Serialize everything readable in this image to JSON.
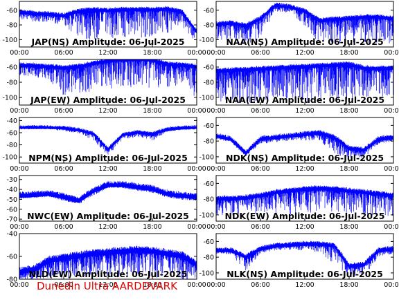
{
  "footer_text": "Dunedin Ultra AARDDVARK",
  "colors": {
    "trace": "#0000ff",
    "frame": "#000000",
    "background": "#ffffff",
    "footer": "#e00000"
  },
  "chart_data": [
    {
      "type": "line",
      "title": "JAP(NS) Amplitude: 06-Jul-2025",
      "x_ticks": [
        "00:00",
        "06:00",
        "12:00",
        "18:00",
        "00:00"
      ],
      "y_ticks": [
        -60,
        -80,
        -100
      ],
      "ylim": [
        -110,
        -48
      ],
      "x": [
        "00:00",
        "02:00",
        "04:00",
        "06:00",
        "08:00",
        "10:00",
        "12:00",
        "14:00",
        "16:00",
        "18:00",
        "20:00",
        "22:00",
        "24:00"
      ],
      "values": [
        -63,
        -65,
        -66,
        -68,
        -62,
        -60,
        -61,
        -60,
        -60,
        -60,
        -59,
        -63,
        -90
      ],
      "noise_floor": [
        -72,
        -74,
        -76,
        -78,
        -100,
        -100,
        -98,
        -97,
        -98,
        -97,
        -90,
        -80,
        -104
      ],
      "series": [
        {
          "values": [
            -63,
            -65,
            -66,
            -68,
            -62,
            -60,
            -61,
            -60,
            -60,
            -60,
            -59,
            -63,
            -90
          ]
        }
      ]
    },
    {
      "type": "line",
      "title": "NAA(NS) Amplitude: 06-Jul-2025",
      "x_ticks": [
        "00:00",
        "06:00",
        "12:00",
        "18:00",
        "00:00"
      ],
      "y_ticks": [
        -60,
        -80,
        -100
      ],
      "ylim": [
        -110,
        -48
      ],
      "x": [
        "00:00",
        "02:00",
        "04:00",
        "06:00",
        "08:00",
        "10:00",
        "12:00",
        "14:00",
        "16:00",
        "18:00",
        "20:00",
        "22:00",
        "24:00"
      ],
      "values": [
        -80,
        -78,
        -82,
        -72,
        -54,
        -56,
        -62,
        -75,
        -73,
        -72,
        -70,
        -70,
        -72
      ],
      "noise_floor": [
        -100,
        -100,
        -108,
        -95,
        -60,
        -62,
        -80,
        -105,
        -104,
        -102,
        -103,
        -104,
        -104
      ],
      "series": [
        {
          "values": [
            -80,
            -78,
            -82,
            -72,
            -54,
            -56,
            -62,
            -75,
            -73,
            -72,
            -70,
            -70,
            -72
          ]
        }
      ]
    },
    {
      "type": "line",
      "title": "JAP(EW) Amplitude: 06-Jul-2025",
      "x_ticks": [
        "00:00",
        "06:00",
        "12:00",
        "18:00",
        "00:00"
      ],
      "y_ticks": [
        -60,
        -80,
        -100
      ],
      "ylim": [
        -110,
        -50
      ],
      "x": [
        "00:00",
        "02:00",
        "04:00",
        "06:00",
        "08:00",
        "10:00",
        "12:00",
        "14:00",
        "16:00",
        "18:00",
        "20:00",
        "22:00",
        "24:00"
      ],
      "values": [
        -58,
        -59,
        -60,
        -62,
        -60,
        -56,
        -52,
        -51,
        -50,
        -51,
        -57,
        -58,
        -60
      ],
      "noise_floor": [
        -70,
        -72,
        -75,
        -98,
        -95,
        -92,
        -88,
        -85,
        -85,
        -86,
        -92,
        -78,
        -104
      ],
      "series": [
        {
          "values": [
            -58,
            -59,
            -60,
            -62,
            -60,
            -56,
            -52,
            -51,
            -50,
            -51,
            -57,
            -58,
            -60
          ]
        }
      ]
    },
    {
      "type": "line",
      "title": "NAA(EW) Amplitude: 06-Jul-2025",
      "x_ticks": [
        "00:00",
        "06:00",
        "12:00",
        "18:00",
        "00:00"
      ],
      "y_ticks": [
        -60,
        -80,
        -100
      ],
      "ylim": [
        -110,
        -50
      ],
      "x": [
        "00:00",
        "02:00",
        "04:00",
        "06:00",
        "08:00",
        "10:00",
        "12:00",
        "14:00",
        "16:00",
        "18:00",
        "20:00",
        "22:00",
        "24:00"
      ],
      "values": [
        -66,
        -65,
        -64,
        -63,
        -62,
        -61,
        -60,
        -59,
        -58,
        -57,
        -62,
        -63,
        -62
      ],
      "noise_floor": [
        -104,
        -104,
        -105,
        -104,
        -104,
        -104,
        -104,
        -104,
        -104,
        -104,
        -100,
        -98,
        -96
      ],
      "series": [
        {
          "values": [
            -66,
            -65,
            -64,
            -63,
            -62,
            -61,
            -60,
            -59,
            -58,
            -57,
            -62,
            -63,
            -62
          ]
        }
      ]
    },
    {
      "type": "line",
      "title": "NPM(NS) Amplitude: 06-Jul-2025",
      "x_ticks": [
        "00:00",
        "06:00",
        "12:00",
        "18:00",
        "00:00"
      ],
      "y_ticks": [
        -40,
        -60,
        -80,
        -100
      ],
      "ylim": [
        -110,
        -35
      ],
      "x": [
        "00:00",
        "02:00",
        "04:00",
        "06:00",
        "08:00",
        "10:00",
        "12:00",
        "14:00",
        "16:00",
        "18:00",
        "20:00",
        "22:00",
        "24:00"
      ],
      "values": [
        -52,
        -52,
        -52,
        -53,
        -56,
        -62,
        -88,
        -64,
        -60,
        -63,
        -55,
        -53,
        -52
      ],
      "noise_floor": [
        -53,
        -53,
        -53,
        -56,
        -60,
        -72,
        -96,
        -70,
        -66,
        -72,
        -57,
        -54,
        -53
      ],
      "series": [
        {
          "values": [
            -52,
            -52,
            -52,
            -53,
            -56,
            -62,
            -88,
            -64,
            -60,
            -63,
            -55,
            -53,
            -52
          ]
        }
      ]
    },
    {
      "type": "line",
      "title": "NDK(NS) Amplitude: 06-Jul-2025",
      "x_ticks": [
        "00:00",
        "06:00",
        "12:00",
        "18:00",
        "00:00"
      ],
      "y_ticks": [
        -60,
        -80,
        -100
      ],
      "ylim": [
        -108,
        -50
      ],
      "x": [
        "00:00",
        "02:00",
        "04:00",
        "06:00",
        "08:00",
        "10:00",
        "12:00",
        "14:00",
        "16:00",
        "18:00",
        "20:00",
        "22:00",
        "24:00"
      ],
      "values": [
        -74,
        -78,
        -96,
        -78,
        -76,
        -74,
        -72,
        -70,
        -76,
        -90,
        -92,
        -78,
        -76
      ],
      "noise_floor": [
        -76,
        -80,
        -98,
        -82,
        -80,
        -78,
        -78,
        -78,
        -95,
        -100,
        -100,
        -82,
        -79
      ],
      "series": [
        {
          "values": [
            -74,
            -78,
            -96,
            -78,
            -76,
            -74,
            -72,
            -70,
            -76,
            -90,
            -92,
            -78,
            -76
          ]
        }
      ]
    },
    {
      "type": "line",
      "title": "NWC(EW) Amplitude: 06-Jul-2025",
      "x_ticks": [
        "00:00",
        "06:00",
        "12:00",
        "18:00",
        "00:00"
      ],
      "y_ticks": [
        -30,
        -40,
        -50,
        -60,
        -70
      ],
      "ylim": [
        -72,
        -26
      ],
      "x": [
        "00:00",
        "02:00",
        "04:00",
        "06:00",
        "08:00",
        "10:00",
        "12:00",
        "14:00",
        "16:00",
        "18:00",
        "20:00",
        "22:00",
        "24:00"
      ],
      "values": [
        -47,
        -46,
        -45,
        -48,
        -52,
        -42,
        -36,
        -36,
        -38,
        -40,
        -45,
        -47,
        -48
      ],
      "noise_floor": [
        -48,
        -47,
        -46,
        -50,
        -54,
        -45,
        -37,
        -37,
        -40,
        -42,
        -47,
        -49,
        -50
      ],
      "series": [
        {
          "values": [
            -47,
            -46,
            -45,
            -48,
            -52,
            -42,
            -36,
            -36,
            -38,
            -40,
            -45,
            -47,
            -48
          ]
        }
      ]
    },
    {
      "type": "line",
      "title": "NDK(EW) Amplitude: 06-Jul-2025",
      "x_ticks": [
        "00:00",
        "06:00",
        "12:00",
        "18:00",
        "00:00"
      ],
      "y_ticks": [
        -60,
        -80,
        -100
      ],
      "ylim": [
        -108,
        -50
      ],
      "x": [
        "00:00",
        "02:00",
        "04:00",
        "06:00",
        "08:00",
        "10:00",
        "12:00",
        "14:00",
        "16:00",
        "18:00",
        "20:00",
        "22:00",
        "24:00"
      ],
      "values": [
        -80,
        -80,
        -79,
        -76,
        -72,
        -70,
        -68,
        -67,
        -68,
        -70,
        -72,
        -74,
        -76
      ],
      "noise_floor": [
        -100,
        -100,
        -100,
        -98,
        -98,
        -98,
        -97,
        -97,
        -97,
        -98,
        -100,
        -100,
        -100
      ],
      "series": [
        {
          "values": [
            -80,
            -80,
            -79,
            -76,
            -72,
            -70,
            -68,
            -67,
            -68,
            -70,
            -72,
            -74,
            -76
          ]
        }
      ]
    },
    {
      "type": "line",
      "title": "NLD(EW) Amplitude: 06-Jul-2025",
      "x_ticks": [
        "00:00",
        "06:00",
        "12:00",
        "18:00",
        "00:00"
      ],
      "y_ticks": [
        -40,
        -60,
        -80
      ],
      "ylim": [
        -80,
        -40
      ],
      "x": [
        "00:00",
        "02:00",
        "04:00",
        "06:00",
        "08:00",
        "10:00",
        "12:00",
        "14:00",
        "16:00",
        "18:00",
        "20:00",
        "22:00",
        "24:00"
      ],
      "values": [
        -74,
        -72,
        -64,
        -62,
        -60,
        -58,
        -57,
        -56,
        -55,
        -56,
        -58,
        -60,
        -68
      ],
      "noise_floor": [
        -80,
        -80,
        -78,
        -78,
        -77,
        -77,
        -77,
        -76,
        -76,
        -77,
        -78,
        -79,
        -80
      ],
      "series": [
        {
          "values": [
            -74,
            -72,
            -64,
            -62,
            -60,
            -58,
            -57,
            -56,
            -55,
            -56,
            -58,
            -60,
            -68
          ]
        }
      ]
    },
    {
      "type": "line",
      "title": "NLK(NS) Amplitude: 06-Jul-2025",
      "x_ticks": [
        "00:00",
        "06:00",
        "12:00",
        "18:00",
        "00:00"
      ],
      "y_ticks": [
        -60,
        -80,
        -100
      ],
      "ylim": [
        -108,
        -50
      ],
      "x": [
        "00:00",
        "02:00",
        "04:00",
        "06:00",
        "08:00",
        "10:00",
        "12:00",
        "14:00",
        "16:00",
        "18:00",
        "20:00",
        "22:00",
        "24:00"
      ],
      "values": [
        -72,
        -72,
        -80,
        -70,
        -66,
        -65,
        -64,
        -64,
        -66,
        -92,
        -90,
        -72,
        -70
      ],
      "noise_floor": [
        -74,
        -75,
        -96,
        -74,
        -70,
        -69,
        -70,
        -72,
        -88,
        -102,
        -104,
        -78,
        -74
      ],
      "series": [
        {
          "values": [
            -72,
            -72,
            -80,
            -70,
            -66,
            -65,
            -64,
            -64,
            -66,
            -92,
            -90,
            -72,
            -70
          ]
        }
      ]
    }
  ]
}
